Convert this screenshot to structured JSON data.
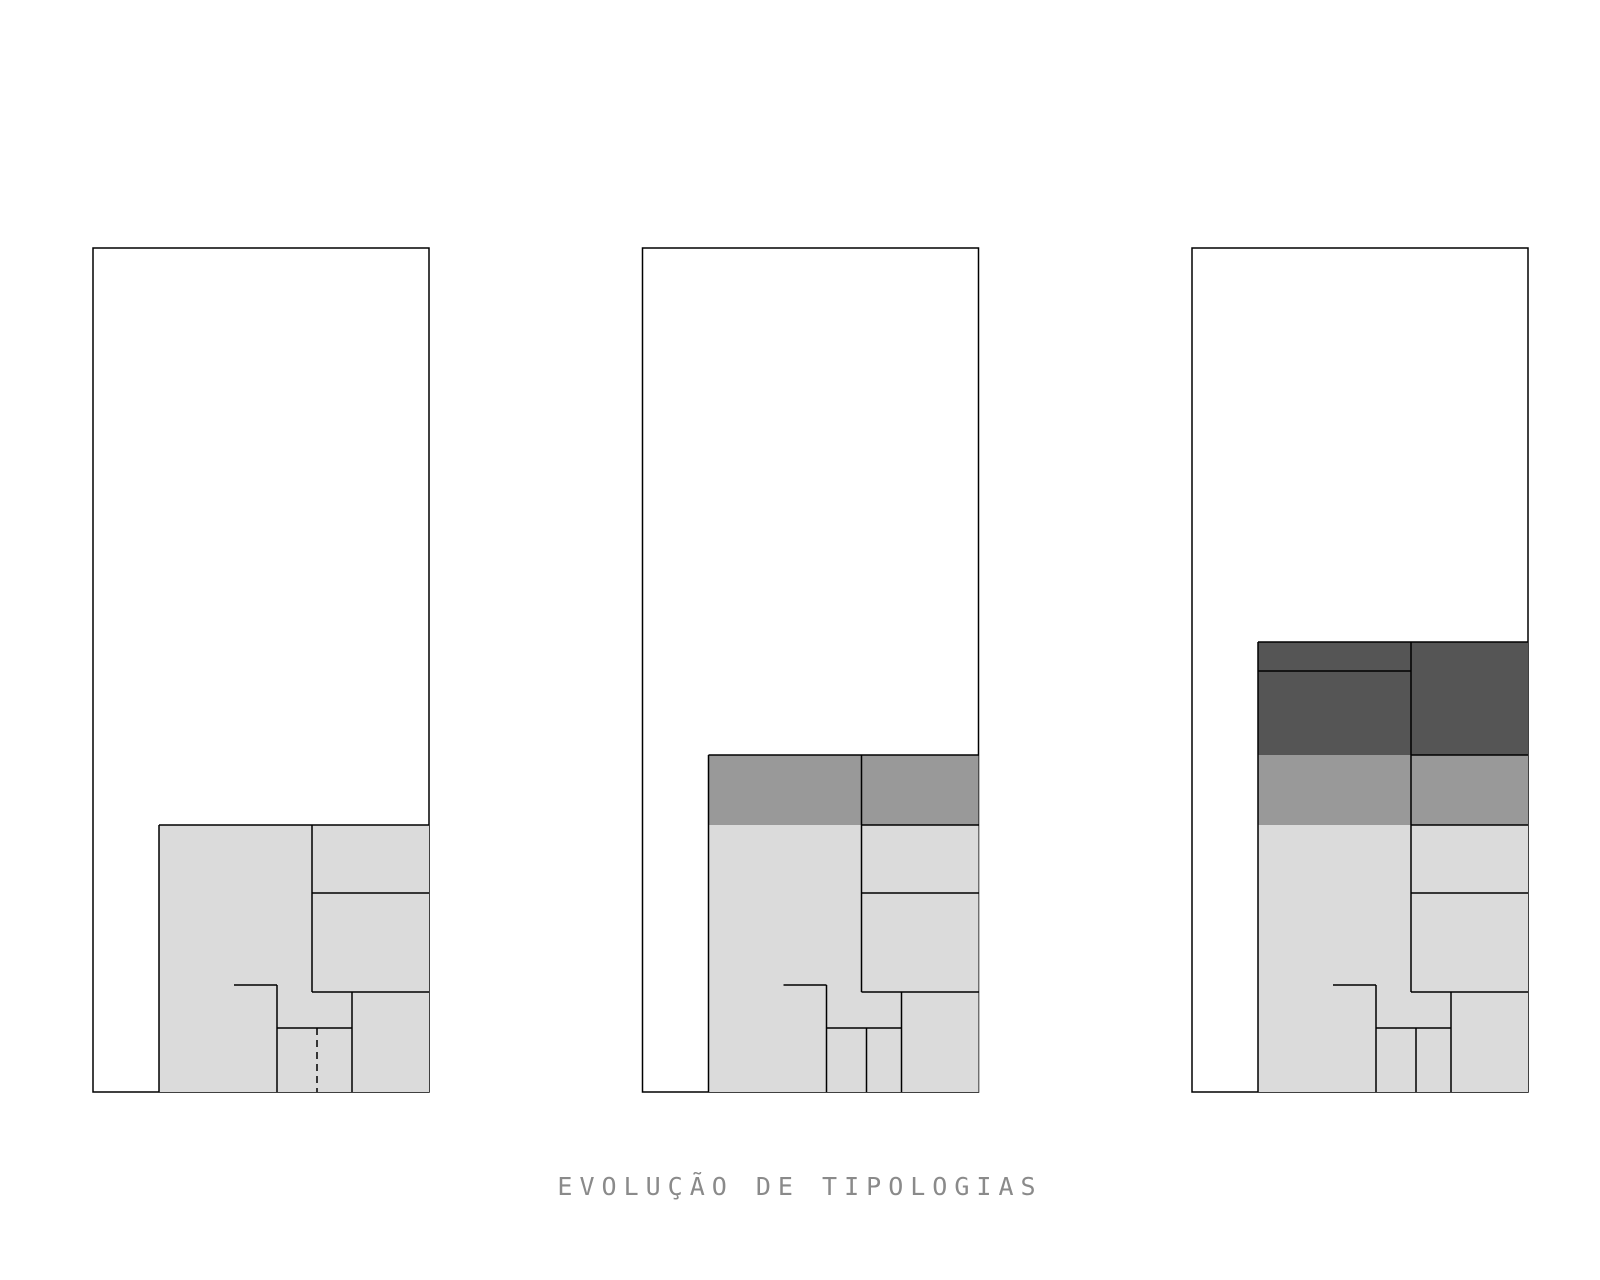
{
  "title": "EVOLUÇÃO DE TIPOLOGIAS",
  "colors": {
    "outline": "#000000",
    "level_1_fill": "#dbdbdb",
    "level_2_fill": "#999999",
    "level_3_fill": "#555555"
  },
  "panels": [
    {
      "name": "typology-1",
      "levels": 1,
      "dashed_divider": true
    },
    {
      "name": "typology-2",
      "levels": 2,
      "dashed_divider": false
    },
    {
      "name": "typology-3",
      "levels": 3,
      "dashed_divider": false
    }
  ]
}
